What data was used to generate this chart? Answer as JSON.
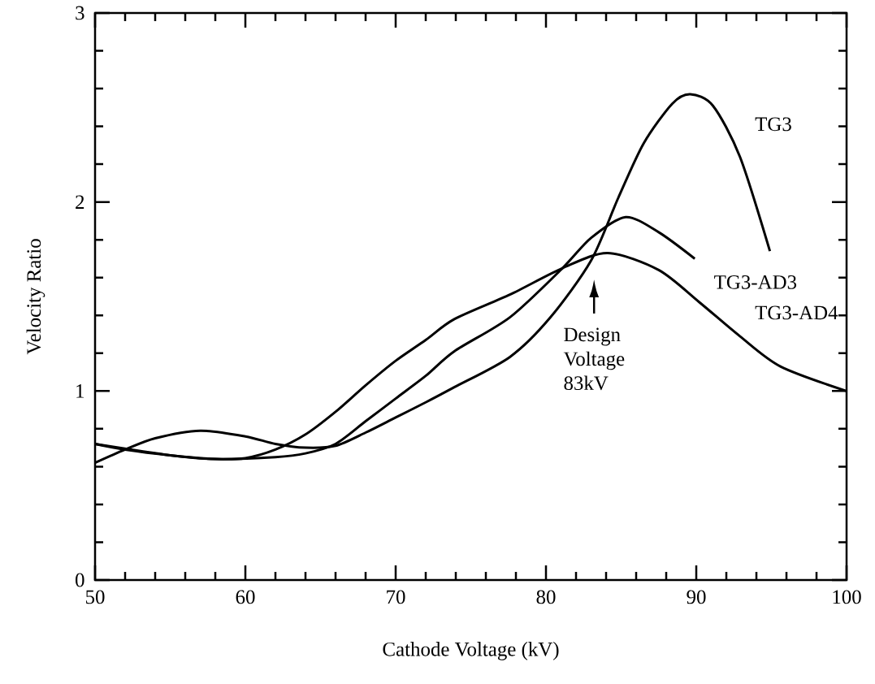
{
  "chart_data": {
    "type": "line",
    "xlabel": "Cathode Voltage (kV)",
    "ylabel": "Velocity Ratio",
    "xlim": [
      50,
      100
    ],
    "ylim": [
      0,
      3
    ],
    "xticks": [
      50,
      60,
      70,
      80,
      90,
      100
    ],
    "yticks": [
      0,
      1,
      2,
      3
    ],
    "series": [
      {
        "name": "TG3",
        "color": "#000000",
        "x": [
          50,
          52,
          54,
          57,
          60,
          62,
          64,
          66,
          68,
          70,
          72,
          73.9,
          77.6,
          80.3,
          83.0,
          84.8,
          86.5,
          88.4,
          89.6,
          91.1,
          92.9,
          94.9
        ],
        "values": [
          0.62,
          0.69,
          0.75,
          0.79,
          0.76,
          0.72,
          0.7,
          0.71,
          0.78,
          0.86,
          0.94,
          1.02,
          1.18,
          1.39,
          1.69,
          2.02,
          2.31,
          2.52,
          2.57,
          2.51,
          2.24,
          1.74
        ]
      },
      {
        "name": "TG3-AD3",
        "color": "#000000",
        "x": [
          50,
          55,
          58,
          62,
          64,
          66,
          68,
          70,
          72,
          73.9,
          77.6,
          81.1,
          83.0,
          85.3,
          87.5,
          89.9
        ],
        "values": [
          0.72,
          0.66,
          0.64,
          0.65,
          0.67,
          0.72,
          0.84,
          0.96,
          1.08,
          1.21,
          1.39,
          1.65,
          1.81,
          1.92,
          1.84,
          1.7
        ]
      },
      {
        "name": "TG3-AD4",
        "color": "#000000",
        "x": [
          50,
          52,
          55,
          58,
          60,
          62,
          64,
          66,
          68,
          70,
          72,
          73.9,
          77.6,
          81.1,
          84.1,
          87.5,
          90.2,
          92.9,
          95.6,
          100
        ],
        "values": [
          0.72,
          0.69,
          0.66,
          0.64,
          0.645,
          0.69,
          0.77,
          0.89,
          1.03,
          1.16,
          1.27,
          1.38,
          1.51,
          1.65,
          1.73,
          1.64,
          1.47,
          1.29,
          1.13,
          1.0
        ]
      }
    ],
    "legend": "right",
    "annotations": [
      "Design Voltage 83kV"
    ]
  }
}
